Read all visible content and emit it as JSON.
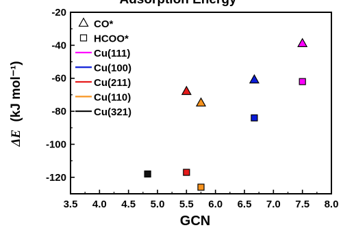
{
  "chart_data": {
    "type": "scatter",
    "title": "Adsorption Energy",
    "xlabel": "GCN",
    "ylabel_symbol": "ΔE",
    "ylabel_unit": "(kJ mol⁻¹)",
    "xlim": [
      3.5,
      8.0
    ],
    "ylim": [
      -130,
      -20
    ],
    "xticks": [
      "3.5",
      "4.0",
      "4.5",
      "5.0",
      "5.5",
      "6.0",
      "6.5",
      "7.0",
      "7.5",
      "8.0"
    ],
    "yticks": [
      "-120",
      "-100",
      "-80",
      "-60",
      "-40",
      "-20"
    ],
    "grid": false,
    "legend_position": "top-left",
    "legend": {
      "markers": [
        {
          "label": "CO*",
          "shape": "triangle"
        },
        {
          "label": "HCOO*",
          "shape": "square"
        }
      ],
      "surfaces": [
        {
          "label": "Cu(111)",
          "color": "#ff00ff"
        },
        {
          "label": "Cu(100)",
          "color": "#0b1cd8"
        },
        {
          "label": "Cu(211)",
          "color": "#e61b1b"
        },
        {
          "label": "Cu(110)",
          "color": "#f7931e"
        },
        {
          "label": "Cu(321)",
          "color": "#111111"
        }
      ]
    },
    "series": [
      {
        "adsorbate": "CO*",
        "points": [
          {
            "surface": "Cu(211)",
            "x": 5.5,
            "y": -68,
            "color": "#e61b1b"
          },
          {
            "surface": "Cu(110)",
            "x": 5.75,
            "y": -75,
            "color": "#f7931e"
          },
          {
            "surface": "Cu(100)",
            "x": 6.67,
            "y": -61,
            "color": "#0b1cd8"
          },
          {
            "surface": "Cu(111)",
            "x": 7.5,
            "y": -39,
            "color": "#ff00ff"
          }
        ]
      },
      {
        "adsorbate": "HCOO*",
        "points": [
          {
            "surface": "Cu(321)",
            "x": 4.83,
            "y": -118,
            "color": "#111111"
          },
          {
            "surface": "Cu(211)",
            "x": 5.5,
            "y": -117,
            "color": "#e61b1b"
          },
          {
            "surface": "Cu(110)",
            "x": 5.75,
            "y": -126,
            "color": "#f7931e"
          },
          {
            "surface": "Cu(100)",
            "x": 6.67,
            "y": -84,
            "color": "#0b1cd8"
          },
          {
            "surface": "Cu(111)",
            "x": 7.5,
            "y": -62,
            "color": "#ff00ff"
          }
        ]
      }
    ]
  }
}
